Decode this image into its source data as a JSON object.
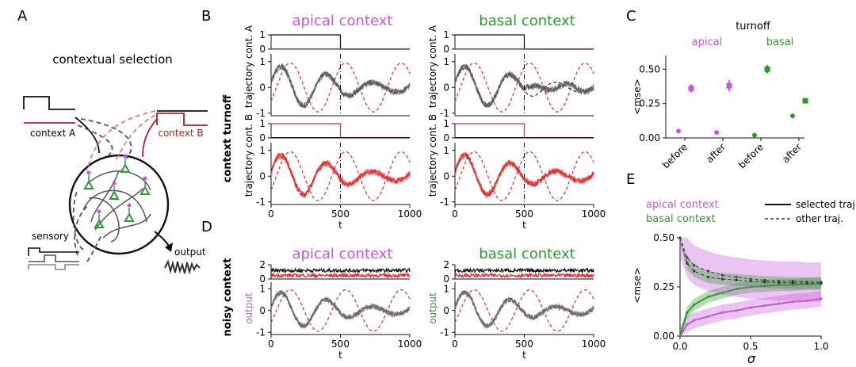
{
  "panels": {
    "A": "A",
    "B": "B",
    "C": "C",
    "D": "D",
    "E": "E"
  },
  "colors": {
    "apical": "#c45ad6",
    "basal": "#2e9a2e",
    "contextA": "#b22222",
    "contextB": "#e24040",
    "black": "#111111",
    "grey": "#777777",
    "target": "#e52b2b"
  },
  "panelA": {
    "title": "contextual selection",
    "contextA": "context A",
    "contextB": "context B",
    "sensory": "sensory",
    "output": "output"
  },
  "panelB": {
    "side_label": "context turnoff",
    "titles": {
      "apical": "apical context",
      "basal": "basal context"
    },
    "ylabels": {
      "contA": "cont. A",
      "contB": "cont. B",
      "traj": "trajectory"
    },
    "xlabel": "t",
    "xticks": [
      "0",
      "500",
      "1000"
    ],
    "ctx_yticks": [
      "0",
      "1"
    ],
    "traj_yticks": [
      "-1",
      "0",
      "1"
    ]
  },
  "panelC": {
    "turnoff": "turnoff",
    "apical": "apical",
    "basal": "basal",
    "ylabel": "<mse>",
    "yticks": [
      "0.00",
      "0.25",
      "0.50"
    ],
    "xticks": [
      "before",
      "after",
      "before",
      "after"
    ]
  },
  "panelD": {
    "side_label": "noisy context",
    "titles": {
      "apical": "apical context",
      "basal": "basal context"
    },
    "ylabel": "output",
    "xlabel": "t",
    "xticks": [
      "0",
      "500",
      "1000"
    ],
    "ctx_yticks": [
      "0",
      "2"
    ],
    "traj_yticks": [
      "-1",
      "0",
      "1"
    ]
  },
  "panelE": {
    "legend": {
      "apical": "apical context",
      "basal": "basal context",
      "selected": "selected traj.",
      "other": "other traj."
    },
    "ylabel": "<mse>",
    "xlabel": "σ",
    "xticks": [
      "0.0",
      "0.5",
      "1.0"
    ],
    "yticks": [
      "0.00",
      "0.25",
      "0.50"
    ]
  },
  "chart_data": [
    {
      "type": "scatter",
      "panel": "C",
      "categories": [
        "before",
        "after",
        "before",
        "after"
      ],
      "ylim": [
        0,
        0.6
      ],
      "ylabel": "<mse>",
      "series": [
        {
          "name": "apical",
          "x": [
            0,
            1
          ],
          "selected_mse": [
            0.05,
            0.04
          ],
          "other_mse": [
            0.36,
            0.38
          ],
          "other_err": [
            0.03,
            0.04
          ]
        },
        {
          "name": "basal",
          "x": [
            2,
            3
          ],
          "selected_mse": [
            0.02,
            0.16
          ],
          "other_mse": [
            0.5,
            0.27
          ],
          "other_err": [
            0.03,
            0.015
          ]
        }
      ]
    },
    {
      "type": "line",
      "panel": "E",
      "xlim": [
        0,
        1
      ],
      "ylim": [
        0,
        0.5
      ],
      "xlabel": "σ",
      "ylabel": "<mse>",
      "x": [
        0.0,
        0.05,
        0.1,
        0.2,
        0.3,
        0.4,
        0.5,
        0.6,
        0.7,
        0.8,
        0.9,
        1.0
      ],
      "series": [
        {
          "name": "apical context",
          "style": "selected traj.",
          "values": [
            0.0,
            0.06,
            0.08,
            0.1,
            0.12,
            0.13,
            0.145,
            0.155,
            0.165,
            0.175,
            0.18,
            0.19
          ],
          "band": 0.04
        },
        {
          "name": "basal context",
          "style": "selected traj.",
          "values": [
            0.0,
            0.12,
            0.16,
            0.2,
            0.22,
            0.24,
            0.25,
            0.255,
            0.26,
            0.26,
            0.265,
            0.265
          ],
          "band": 0.03
        },
        {
          "name": "apical context",
          "style": "other traj.",
          "values": [
            0.5,
            0.4,
            0.36,
            0.33,
            0.31,
            0.3,
            0.29,
            0.285,
            0.28,
            0.28,
            0.275,
            0.275
          ],
          "band": 0.1
        },
        {
          "name": "basal context",
          "style": "other traj.",
          "values": [
            0.5,
            0.37,
            0.33,
            0.3,
            0.29,
            0.285,
            0.28,
            0.275,
            0.272,
            0.27,
            0.27,
            0.27
          ],
          "band": 0.03
        }
      ]
    }
  ]
}
